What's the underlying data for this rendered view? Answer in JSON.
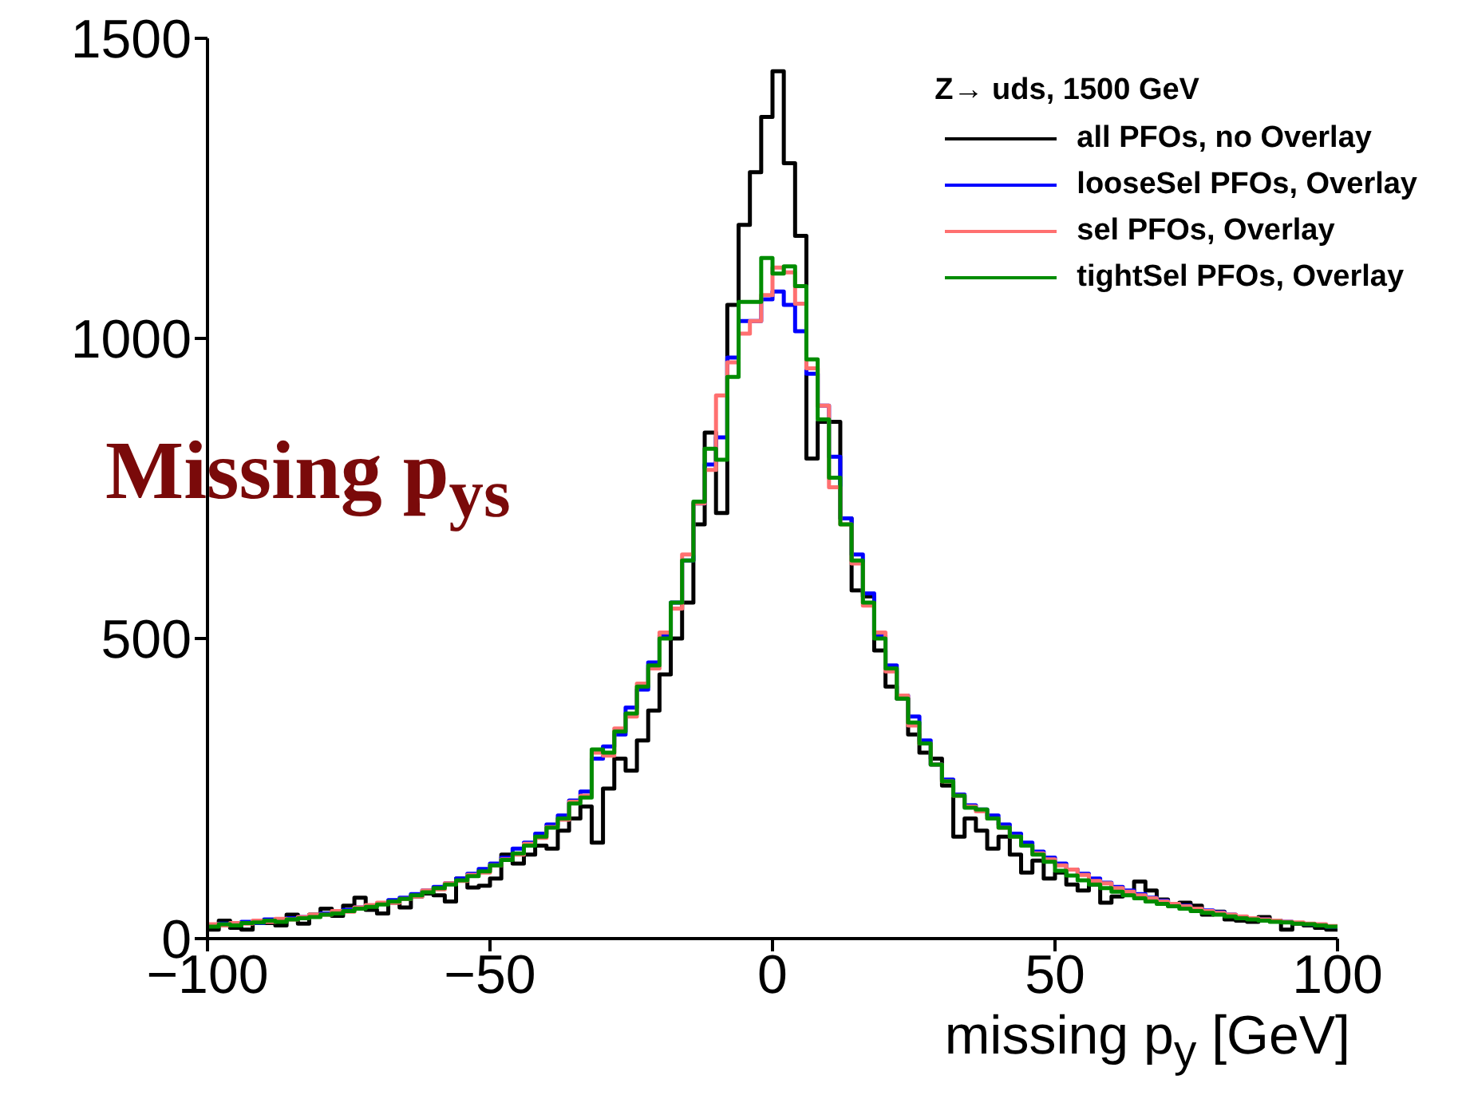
{
  "chart_data": {
    "type": "histogram",
    "xlabel": "missing p$_{y}$ [GeV]",
    "legend_title": "Z→ uds, 1500 GeV",
    "annotations": [
      "Missing p$_{ys}$"
    ],
    "bins": [
      -100,
      -98,
      -96,
      -94,
      -92,
      -90,
      -88,
      -86,
      -84,
      -82,
      -80,
      -78,
      -76,
      -74,
      -72,
      -70,
      -68,
      -66,
      -64,
      -62,
      -60,
      -58,
      -56,
      -54,
      -52,
      -50,
      -48,
      -46,
      -44,
      -42,
      -40,
      -38,
      -36,
      -34,
      -32,
      -30,
      -28,
      -26,
      -24,
      -22,
      -20,
      -18,
      -16,
      -14,
      -12,
      -10,
      -8,
      -6,
      -4,
      -2,
      0,
      2,
      4,
      6,
      8,
      10,
      12,
      14,
      16,
      18,
      20,
      22,
      24,
      26,
      28,
      30,
      32,
      34,
      36,
      38,
      40,
      42,
      44,
      46,
      48,
      50,
      52,
      54,
      56,
      58,
      60,
      62,
      64,
      66,
      68,
      70,
      72,
      74,
      76,
      78,
      80,
      82,
      84,
      86,
      88,
      90,
      92,
      94,
      96,
      98,
      100
    ],
    "series": [
      {
        "name": "all PFOs, no Overlay",
        "color": "#000000",
        "values": [
          15,
          30,
          18,
          15,
          28,
          26,
          22,
          40,
          25,
          40,
          50,
          38,
          55,
          68,
          48,
          42,
          60,
          52,
          70,
          75,
          72,
          62,
          100,
          85,
          88,
          100,
          140,
          125,
          140,
          155,
          150,
          180,
          200,
          220,
          160,
          250,
          300,
          280,
          330,
          380,
          440,
          500,
          560,
          690,
          843,
          709,
          1056,
          1189,
          1277,
          1369,
          1445,
          1292,
          1171,
          800,
          861,
          861,
          700,
          580,
          570,
          480,
          420,
          400,
          340,
          310,
          300,
          255,
          170,
          200,
          180,
          150,
          170,
          140,
          110,
          130,
          100,
          110,
          90,
          80,
          90,
          60,
          70,
          75,
          95,
          80,
          65,
          55,
          60,
          55,
          40,
          45,
          32,
          30,
          28,
          36,
          30,
          15,
          25,
          22,
          18,
          15
        ]
      },
      {
        "name": "looseSel PFOs, Overlay",
        "color": "#0000ff",
        "values": [
          22,
          25,
          24,
          28,
          26,
          32,
          30,
          34,
          36,
          38,
          42,
          44,
          48,
          52,
          55,
          58,
          64,
          68,
          74,
          80,
          86,
          92,
          100,
          108,
          116,
          125,
          135,
          150,
          160,
          175,
          190,
          205,
          230,
          245,
          300,
          320,
          340,
          385,
          415,
          460,
          505,
          560,
          630,
          725,
          790,
          835,
          968,
          1029,
          1029,
          1065,
          1078,
          1056,
          1012,
          941,
          888,
          803,
          700,
          640,
          575,
          505,
          455,
          405,
          370,
          330,
          290,
          265,
          240,
          222,
          215,
          205,
          190,
          175,
          160,
          145,
          135,
          125,
          115,
          108,
          100,
          93,
          86,
          80,
          74,
          68,
          63,
          58,
          55,
          50,
          47,
          44,
          40,
          36,
          34,
          32,
          30,
          28,
          26,
          24,
          22,
          20
        ]
      },
      {
        "name": "sel PFOs, Overlay",
        "color": "#ff7070",
        "values": [
          24,
          22,
          26,
          25,
          30,
          28,
          33,
          32,
          36,
          40,
          40,
          46,
          45,
          52,
          56,
          60,
          60,
          66,
          70,
          80,
          82,
          92,
          96,
          106,
          110,
          122,
          132,
          140,
          158,
          168,
          186,
          198,
          228,
          238,
          310,
          305,
          350,
          370,
          425,
          450,
          510,
          550,
          640,
          725,
          781,
          905,
          960,
          1008,
          1029,
          1072,
          1118,
          1110,
          1058,
          950,
          888,
          752,
          690,
          625,
          555,
          510,
          445,
          405,
          355,
          325,
          290,
          262,
          238,
          220,
          212,
          200,
          185,
          170,
          155,
          142,
          132,
          122,
          115,
          106,
          96,
          92,
          84,
          78,
          72,
          67,
          62,
          58,
          54,
          50,
          46,
          43,
          40,
          37,
          34,
          32,
          30,
          28,
          27,
          25,
          24,
          21
        ]
      },
      {
        "name": "tightSel PFOs, Overlay",
        "color": "#008c00",
        "values": [
          20,
          24,
          22,
          26,
          27,
          30,
          28,
          32,
          34,
          36,
          40,
          42,
          46,
          50,
          53,
          57,
          62,
          66,
          72,
          77,
          84,
          90,
          97,
          104,
          112,
          122,
          131,
          142,
          155,
          170,
          185,
          200,
          225,
          235,
          315,
          310,
          345,
          375,
          420,
          455,
          500,
          560,
          630,
          728,
          816,
          798,
          936,
          1061,
          1061,
          1134,
          1108,
          1120,
          1087,
          965,
          865,
          768,
          690,
          630,
          560,
          500,
          450,
          400,
          360,
          325,
          290,
          262,
          238,
          218,
          215,
          200,
          185,
          170,
          155,
          140,
          128,
          113,
          105,
          97,
          90,
          84,
          78,
          72,
          67,
          62,
          58,
          54,
          50,
          46,
          43,
          40,
          37,
          34,
          32,
          30,
          28,
          27,
          25,
          24,
          22,
          20
        ]
      }
    ],
    "xlim": [
      -100,
      100
    ],
    "xticks": [
      -100,
      -50,
      0,
      50,
      100
    ],
    "ylim": [
      0,
      1500
    ],
    "yticks": [
      0,
      500,
      1000,
      1500
    ],
    "grid": false,
    "legend": "top right"
  }
}
